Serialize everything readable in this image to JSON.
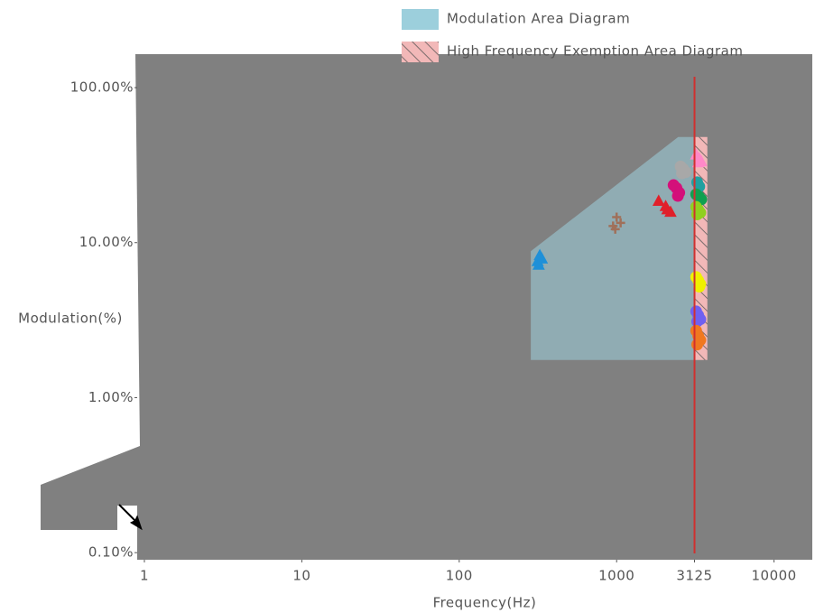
{
  "chart_data": {
    "type": "scatter",
    "x_label": "Frequency(Hz)",
    "y_label": "Modulation(%)",
    "xscale": "log",
    "yscale": "log",
    "xlim": [
      0.9,
      17500
    ],
    "ylim": [
      0.09,
      160
    ],
    "xticks": [
      1,
      10,
      100,
      1000,
      3125,
      10000
    ],
    "yticks": [
      {
        "value": 0.1,
        "label": "0.10%"
      },
      {
        "value": 1,
        "label": "1.00%"
      },
      {
        "value": 10,
        "label": "10.00%"
      },
      {
        "value": 100,
        "label": "100.00%"
      }
    ],
    "background": "#808080",
    "areas": [
      {
        "name": "Modulation Area Diagram",
        "color": "#9ccfdc",
        "hatch": false,
        "x": [
          285,
          285,
          2460,
          3125,
          3125
        ],
        "y": [
          1.75,
          8.8,
          48,
          48,
          1.75
        ]
      },
      {
        "name": "High Frequency Exemption Area Diagram",
        "color": "#f2b8b8",
        "hatch": true,
        "x": [
          3125,
          3125,
          3770,
          3770
        ],
        "y": [
          1.75,
          48,
          48,
          1.75
        ]
      }
    ],
    "vline": {
      "x": 3125,
      "color": "#d0302f"
    },
    "series": [
      {
        "color": "#1e90d8",
        "marker": "triangle",
        "x": [
          315,
          325,
          335,
          320
        ],
        "y": [
          7.6,
          8.3,
          7.9,
          7.2
        ]
      },
      {
        "color": "#a0705a",
        "marker": "plus",
        "x": [
          950,
          1000,
          1060,
          980
        ],
        "y": [
          12.8,
          14.6,
          13.4,
          12.2
        ]
      },
      {
        "color": "#e0202a",
        "marker": "triangle",
        "x": [
          1850,
          2050,
          2200,
          2100
        ],
        "y": [
          18.6,
          17.2,
          15.8,
          16.4
        ]
      },
      {
        "color": "#d4107a",
        "marker": "circle",
        "x": [
          2300,
          2400,
          2500,
          2450
        ],
        "y": [
          23.5,
          22.5,
          21.0,
          20.0
        ]
      },
      {
        "color": "#a8a8a8",
        "marker": "circle",
        "x": [
          2550,
          2650,
          2750,
          2600
        ],
        "y": [
          31.0,
          29.9,
          28.5,
          28.0
        ]
      },
      {
        "color": "#ff88c8",
        "marker": "triangle",
        "x": [
          3200,
          3350,
          3450,
          3300
        ],
        "y": [
          37.0,
          35.0,
          33.5,
          33.0
        ]
      },
      {
        "color": "#20a0a0",
        "marker": "circle",
        "x": [
          3250,
          3350
        ],
        "y": [
          24.5,
          23.0
        ]
      },
      {
        "color": "#10a050",
        "marker": "circle",
        "x": [
          3200,
          3350,
          3450
        ],
        "y": [
          20.5,
          19.7,
          19.0
        ]
      },
      {
        "color": "#90d020",
        "marker": "circle",
        "x": [
          3200,
          3300,
          3400,
          3250
        ],
        "y": [
          17.0,
          16.3,
          15.6,
          15.2
        ]
      },
      {
        "color": "#f0f000",
        "marker": "circle",
        "x": [
          3200,
          3300,
          3400,
          3350
        ],
        "y": [
          6.0,
          5.7,
          5.4,
          5.2
        ]
      },
      {
        "color": "#7060f0",
        "marker": "circle",
        "x": [
          3200,
          3300,
          3400,
          3250
        ],
        "y": [
          3.6,
          3.4,
          3.2,
          3.1
        ]
      },
      {
        "color": "#f07820",
        "marker": "circle",
        "x": [
          3200,
          3300,
          3400,
          3250
        ],
        "y": [
          2.7,
          2.5,
          2.35,
          2.2
        ]
      }
    ]
  }
}
